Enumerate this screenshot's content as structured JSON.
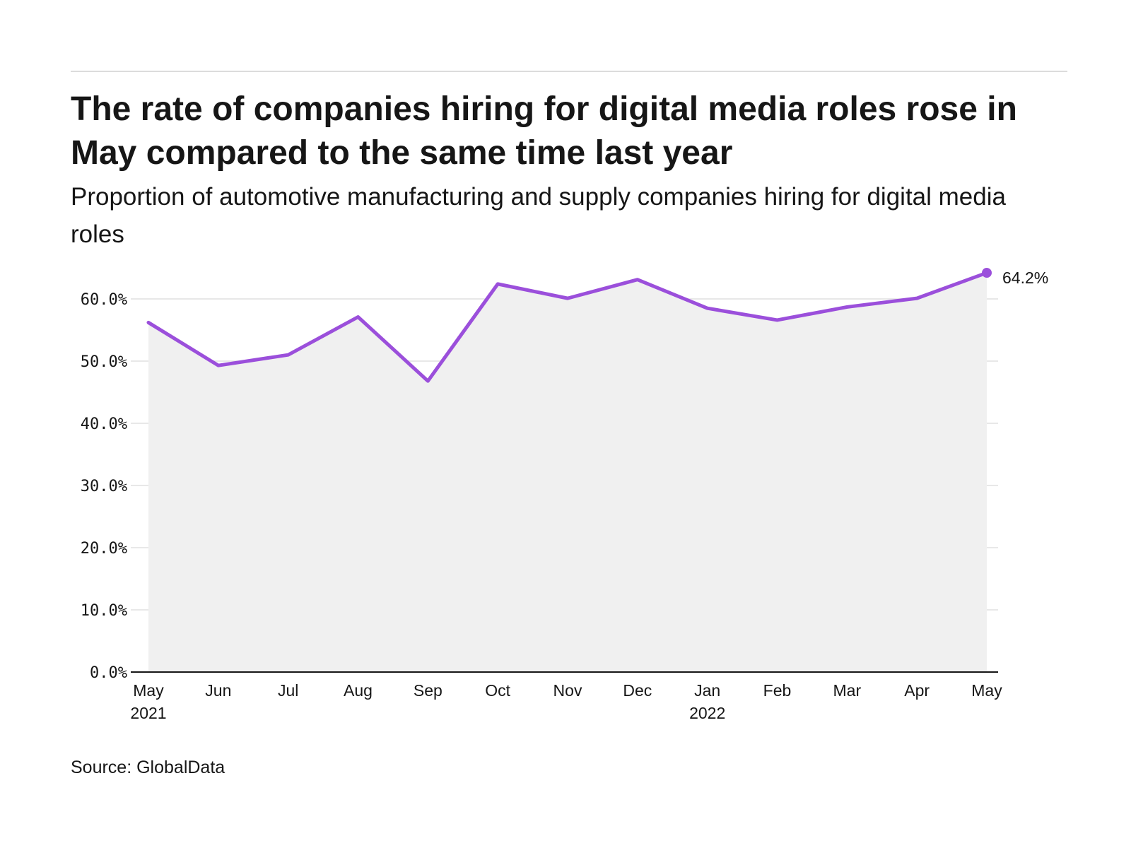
{
  "header": {
    "title": "The rate of companies hiring for digital media roles rose in May compared to the same time last year",
    "subtitle": "Proportion of automotive manufacturing and supply companies hiring for digital media roles"
  },
  "footer": {
    "source": "Source: GlobalData"
  },
  "colors": {
    "line": "#9b4fdb",
    "area": "#f0f0f0",
    "grid": "#e0e0e0",
    "axis": "#161616"
  },
  "chart_data": {
    "type": "line",
    "title": "The rate of companies hiring for digital media roles rose in May compared to the same time last year",
    "subtitle": "Proportion of automotive manufacturing and supply companies hiring for digital media roles",
    "xlabel": "",
    "ylabel": "",
    "x": [
      "May 2021",
      "Jun 2021",
      "Jul 2021",
      "Aug 2021",
      "Sep 2021",
      "Oct 2021",
      "Nov 2021",
      "Dec 2021",
      "Jan 2022",
      "Feb 2022",
      "Mar 2022",
      "Apr 2022",
      "May 2022"
    ],
    "x_tick_labels": [
      {
        "month": "May",
        "year": "2021"
      },
      {
        "month": "Jun",
        "year": ""
      },
      {
        "month": "Jul",
        "year": ""
      },
      {
        "month": "Aug",
        "year": ""
      },
      {
        "month": "Sep",
        "year": ""
      },
      {
        "month": "Oct",
        "year": ""
      },
      {
        "month": "Nov",
        "year": ""
      },
      {
        "month": "Dec",
        "year": ""
      },
      {
        "month": "Jan",
        "year": "2022"
      },
      {
        "month": "Feb",
        "year": ""
      },
      {
        "month": "Mar",
        "year": ""
      },
      {
        "month": "Apr",
        "year": ""
      },
      {
        "month": "May",
        "year": ""
      }
    ],
    "series": [
      {
        "values": [
          56.2,
          49.3,
          51.0,
          57.1,
          46.8,
          62.4,
          60.1,
          63.1,
          58.5,
          56.6,
          58.7,
          60.1,
          64.2
        ]
      }
    ],
    "ylim": [
      0,
      70
    ],
    "yticks": [
      0,
      10,
      20,
      30,
      40,
      50,
      60
    ],
    "ytick_labels": [
      "0.0%",
      "10.0%",
      "20.0%",
      "30.0%",
      "40.0%",
      "50.0%",
      "60.0%"
    ],
    "end_label": "64.2%",
    "grid": true,
    "area_fill": true,
    "legend": "none"
  }
}
